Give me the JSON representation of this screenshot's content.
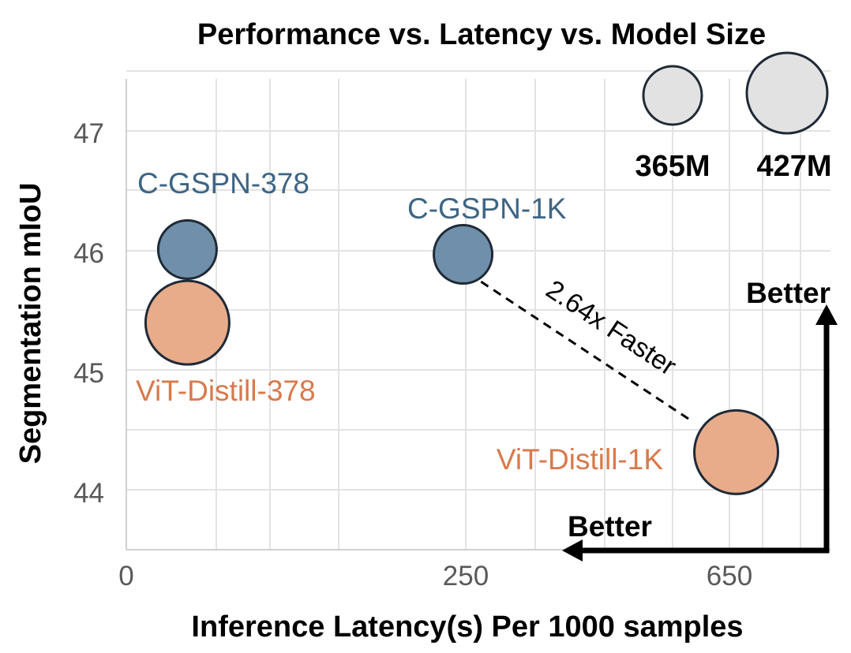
{
  "chart_data": {
    "type": "scatter",
    "title": "Performance vs. Latency vs. Model Size",
    "xlabel": "Inference Latency(s) Per 1000 samples",
    "ylabel": "Segmentation mIoU",
    "x_ticks": [
      "0",
      "250",
      "650"
    ],
    "y_ticks": [
      "47",
      "46",
      "45",
      "44"
    ],
    "grid": true,
    "points": [
      {
        "label": "C-GSPN-378",
        "x": 45,
        "y": 46.03,
        "model_size": "365M",
        "color": "#6f8fab"
      },
      {
        "label": "ViT-Distill-378",
        "x": 45,
        "y": 45.42,
        "model_size": "427M",
        "color": "#e8ac8b"
      },
      {
        "label": "C-GSPN-1K",
        "x": 248,
        "y": 45.99,
        "model_size": "365M",
        "color": "#6f8fab"
      },
      {
        "label": "ViT-Distill-1K",
        "x": 660,
        "y": 44.34,
        "model_size": "427M",
        "color": "#e8ac8b"
      }
    ],
    "size_legend": [
      {
        "label": "365M"
      },
      {
        "label": "427M"
      }
    ],
    "annotations": {
      "speedup": "2.64x Faster",
      "better_y": "Better",
      "better_x": "Better"
    },
    "label_colors": {
      "gspn": "#3d6584",
      "vit": "#d9794b"
    }
  }
}
